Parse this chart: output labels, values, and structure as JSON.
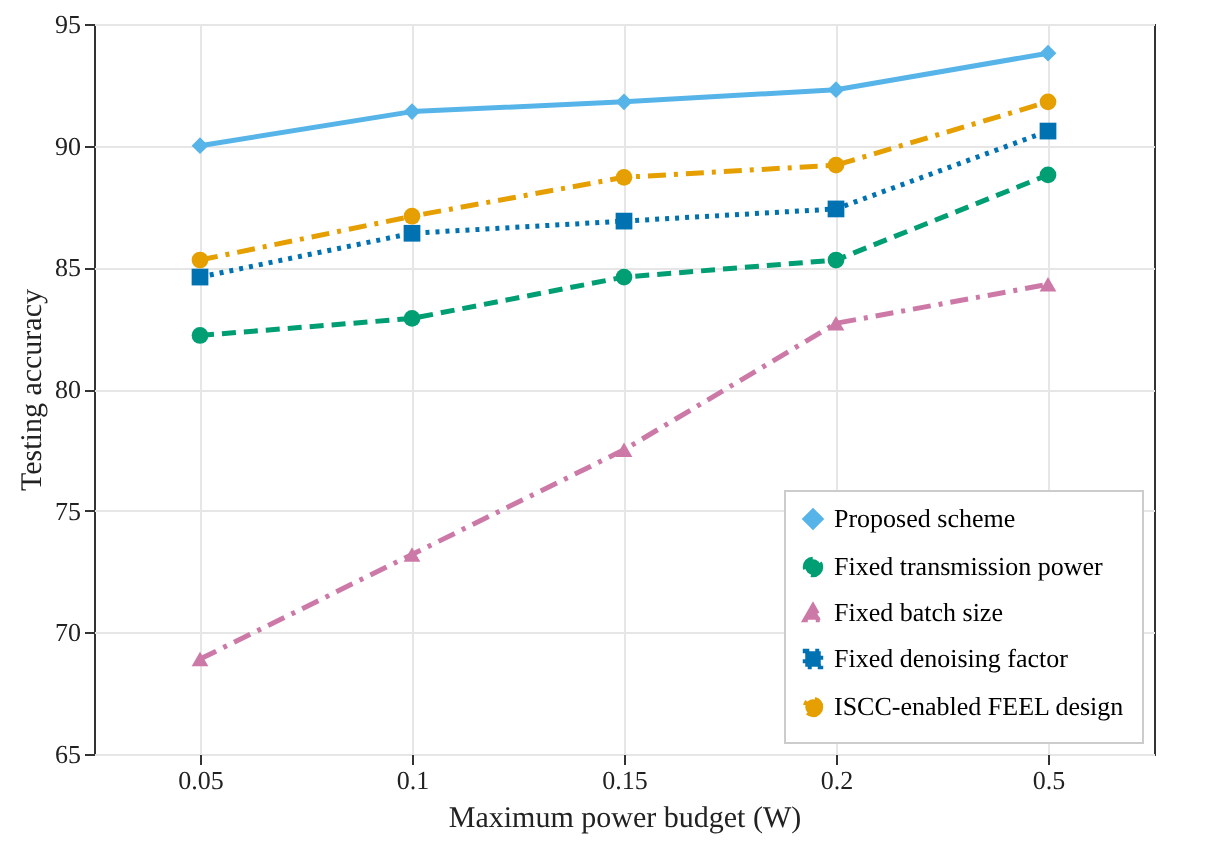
{
  "chart_data": {
    "type": "line",
    "xlabel": "Maximum power budget (W)",
    "ylabel": "Testing accuracy",
    "categories": [
      "0.05",
      "0.1",
      "0.15",
      "0.2",
      "0.5"
    ],
    "ylim": [
      65,
      95
    ],
    "yticks": [
      65,
      70,
      75,
      80,
      85,
      90,
      95
    ],
    "grid": true,
    "legend": "bottom right",
    "series": [
      {
        "name": "Proposed scheme",
        "color": "#56b4e9",
        "marker": "diamond",
        "line_style": "solid",
        "values": [
          90.0,
          91.4,
          91.8,
          92.3,
          93.8
        ]
      },
      {
        "name": "Fixed transmission power",
        "color": "#009e73",
        "marker": "circle",
        "line_style": "dashed",
        "values": [
          82.2,
          82.9,
          84.6,
          85.3,
          88.8
        ]
      },
      {
        "name": "Fixed batch size",
        "color": "#cc79a7",
        "marker": "triangle",
        "line_style": "dashdot",
        "values": [
          68.9,
          73.2,
          77.5,
          82.7,
          84.3
        ]
      },
      {
        "name": "Fixed denoising factor",
        "color": "#0072b2",
        "marker": "square",
        "line_style": "dotted",
        "values": [
          84.6,
          86.4,
          86.9,
          87.4,
          90.6
        ]
      },
      {
        "name": "ISCC-enabled FEEL design",
        "color": "#e69f00",
        "marker": "circle",
        "line_style": "dashdot",
        "values": [
          85.3,
          87.1,
          88.7,
          89.2,
          91.8
        ]
      }
    ]
  }
}
